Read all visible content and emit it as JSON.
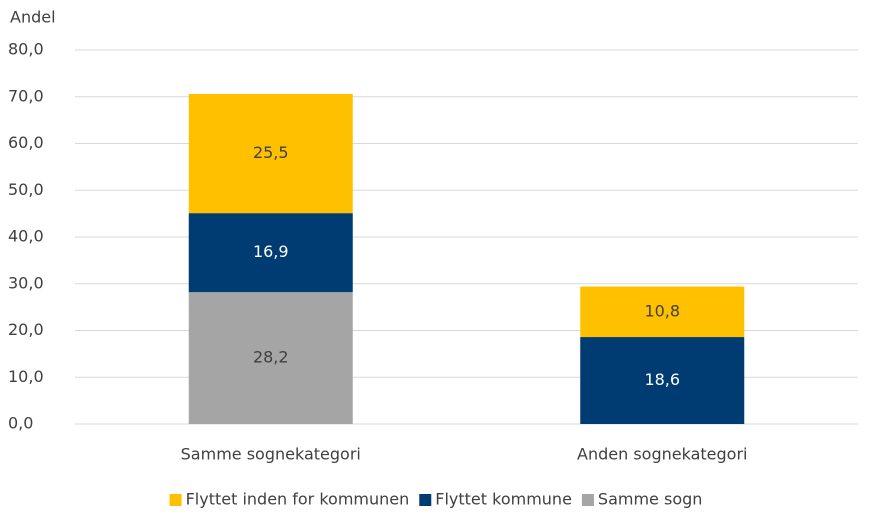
{
  "chart_data": {
    "type": "stacked_bar",
    "y_label": "Andel",
    "categories": [
      "Samme sognekategori",
      "Anden sognekategori"
    ],
    "series": [
      {
        "name": "Flyttet inden for kommunen",
        "color": "#FFC000",
        "values": [
          25.5,
          10.8
        ],
        "value_labels": [
          "25,5",
          "10,8"
        ]
      },
      {
        "name": "Flyttet kommune",
        "color": "#003B71",
        "values": [
          16.9,
          18.6
        ],
        "value_labels": [
          "16,9",
          "18,6"
        ]
      },
      {
        "name": "Samme sogn",
        "color": "#A5A5A5",
        "values": [
          28.2,
          null
        ],
        "value_labels": [
          "28,2",
          null
        ]
      }
    ],
    "ylim": [
      0,
      80
    ],
    "yticks": [
      {
        "value": 0,
        "label": "0,0"
      },
      {
        "value": 10,
        "label": "10,0"
      },
      {
        "value": 20,
        "label": "20,0"
      },
      {
        "value": 30,
        "label": "30,0"
      },
      {
        "value": 40,
        "label": "40,0"
      },
      {
        "value": 50,
        "label": "50,0"
      },
      {
        "value": 60,
        "label": "60,0"
      },
      {
        "value": 70,
        "label": "70,0"
      },
      {
        "value": 80,
        "label": "80,0"
      }
    ],
    "grid": true,
    "legend": "bottom"
  }
}
